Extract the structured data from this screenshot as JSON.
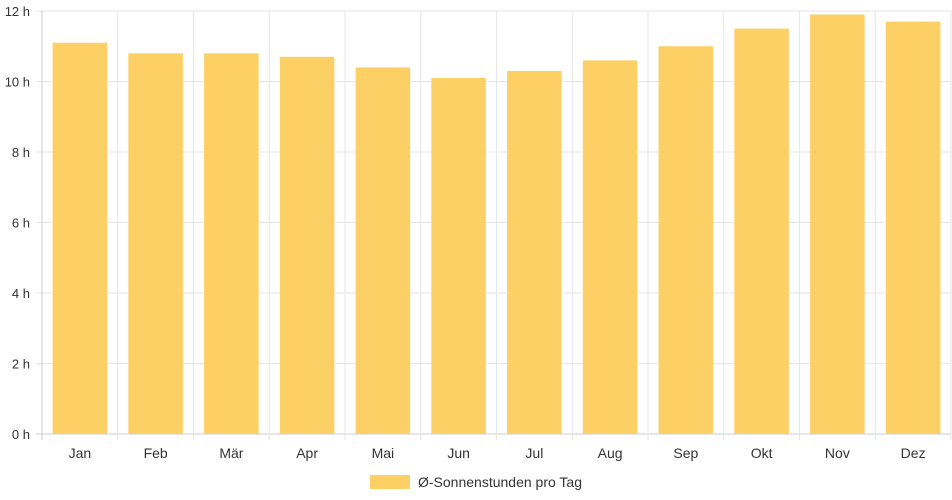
{
  "chart_data": {
    "type": "bar",
    "categories": [
      "Jan",
      "Feb",
      "Mär",
      "Apr",
      "Mai",
      "Jun",
      "Jul",
      "Aug",
      "Sep",
      "Okt",
      "Nov",
      "Dez"
    ],
    "series": [
      {
        "name": "Ø-Sonnenstunden pro Tag",
        "values": [
          11.1,
          10.8,
          10.8,
          10.7,
          10.4,
          10.1,
          10.3,
          10.6,
          11.0,
          11.5,
          11.9,
          11.7
        ]
      }
    ],
    "y_ticks": [
      "0 h",
      "2 h",
      "4 h",
      "6 h",
      "8 h",
      "10 h",
      "12 h"
    ],
    "ylim": [
      0,
      12
    ],
    "grid": true,
    "legend_position": "bottom",
    "colors": {
      "bar": "#fdd066",
      "grid": "#e6e6e6",
      "axis": "#cccccc",
      "text": "#333333"
    }
  }
}
